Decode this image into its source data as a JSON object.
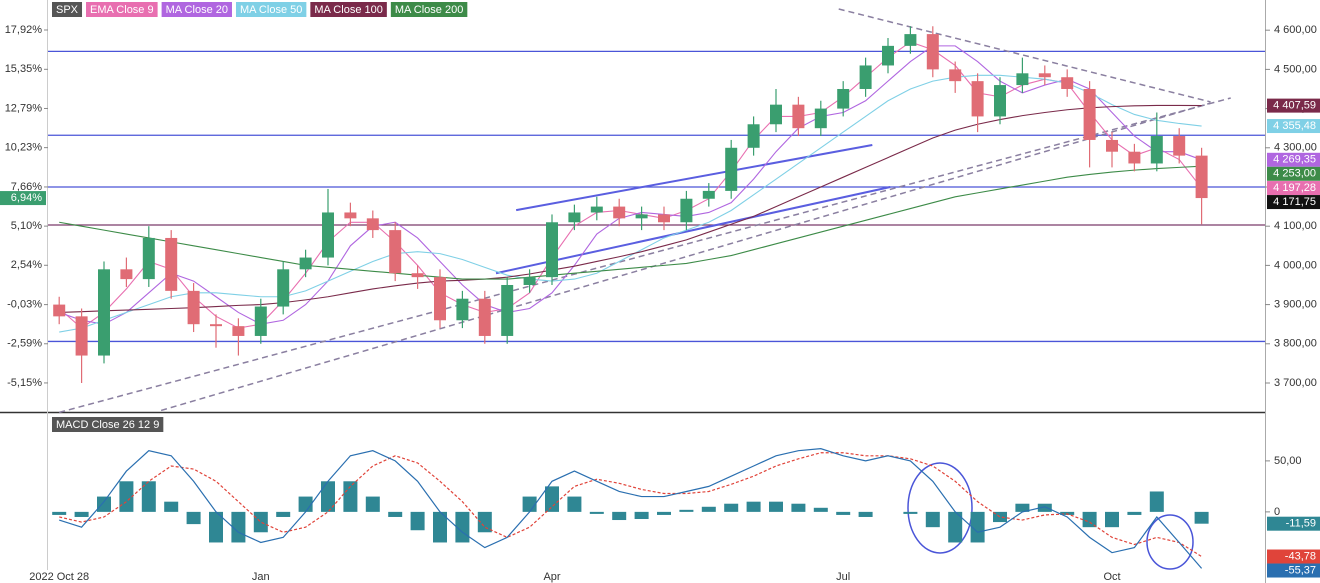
{
  "chart_data": [
    {
      "type": "candlestick",
      "name": "SPX",
      "up_color": "#3a9e6f",
      "down_color": "#e06c75",
      "categories": [
        "2022 Oct 28",
        null,
        null,
        null,
        null,
        null,
        null,
        null,
        null,
        "Jan",
        null,
        null,
        null,
        null,
        null,
        null,
        null,
        null,
        null,
        null,
        null,
        null,
        "Apr",
        null,
        null,
        null,
        null,
        null,
        null,
        null,
        null,
        null,
        null,
        null,
        null,
        "Jul",
        null,
        null,
        null,
        null,
        null,
        null,
        null,
        null,
        null,
        null,
        null,
        "Oct",
        null,
        null,
        null,
        null
      ],
      "open": [
        3900,
        3870,
        3770,
        3990,
        3965,
        4070,
        3935,
        3850,
        3845,
        3820,
        3895,
        3990,
        4020,
        4135,
        4120,
        4090,
        3980,
        3970,
        3860,
        3915,
        3820,
        3950,
        3970,
        4110,
        4135,
        4150,
        4120,
        4130,
        4110,
        4170,
        4190,
        4300,
        4360,
        4410,
        4350,
        4400,
        4450,
        4510,
        4560,
        4590,
        4500,
        4470,
        4380,
        4460,
        4490,
        4480,
        4450,
        4320,
        4290,
        4260,
        4330,
        4280
      ],
      "high": [
        3920,
        3890,
        4010,
        4020,
        4100,
        4090,
        3955,
        3875,
        3865,
        3915,
        4010,
        4040,
        4195,
        4160,
        4140,
        4110,
        4000,
        3990,
        3935,
        3935,
        3970,
        3990,
        4130,
        4155,
        4175,
        4170,
        4150,
        4150,
        4190,
        4210,
        4320,
        4380,
        4450,
        4430,
        4420,
        4470,
        4530,
        4580,
        4610,
        4610,
        4520,
        4490,
        4480,
        4530,
        4510,
        4500,
        4470,
        4340,
        4310,
        4390,
        4350,
        4300
      ],
      "low": [
        3850,
        3700,
        3750,
        3945,
        3945,
        3915,
        3830,
        3790,
        3770,
        3800,
        3875,
        3970,
        4000,
        4100,
        4070,
        3960,
        3940,
        3840,
        3840,
        3800,
        3800,
        3930,
        3950,
        4090,
        4115,
        4100,
        4090,
        4090,
        4090,
        4150,
        4170,
        4280,
        4340,
        4330,
        4330,
        4380,
        4430,
        4490,
        4540,
        4480,
        4440,
        4340,
        4360,
        4440,
        4460,
        4430,
        4250,
        4250,
        4240,
        4240,
        4260,
        4105
      ],
      "close": [
        3870,
        3770,
        3990,
        3965,
        4070,
        3935,
        3850,
        3845,
        3820,
        3895,
        3990,
        4020,
        4135,
        4120,
        4090,
        3980,
        3970,
        3860,
        3915,
        3820,
        3950,
        3970,
        4110,
        4135,
        4150,
        4120,
        4130,
        4110,
        4170,
        4190,
        4300,
        4360,
        4410,
        4350,
        4400,
        4450,
        4510,
        4560,
        4590,
        4500,
        4470,
        4380,
        4460,
        4490,
        4480,
        4450,
        4320,
        4290,
        4260,
        4330,
        4280,
        4171.75
      ],
      "last_label": "4 171,75",
      "last_percent_label": "6,94%",
      "series": [
        {
          "name": "EMA Close 9",
          "color": "#e86fb0",
          "last_label": "4 197,28",
          "values": [
            3890,
            3840,
            3880,
            3940,
            4010,
            3990,
            3920,
            3870,
            3840,
            3850,
            3910,
            3980,
            4060,
            4110,
            4110,
            4060,
            4000,
            3930,
            3900,
            3880,
            3890,
            3930,
            4020,
            4100,
            4135,
            4140,
            4130,
            4120,
            4140,
            4170,
            4240,
            4320,
            4380,
            4380,
            4390,
            4430,
            4480,
            4530,
            4570,
            4550,
            4510,
            4440,
            4430,
            4460,
            4475,
            4465,
            4390,
            4320,
            4280,
            4300,
            4270,
            4197.28
          ]
        },
        {
          "name": "MA Close 20",
          "color": "#b066e0",
          "last_label": "4 269,35",
          "values": [
            3880,
            3860,
            3850,
            3880,
            3930,
            3980,
            3960,
            3920,
            3880,
            3850,
            3860,
            3900,
            3960,
            4050,
            4100,
            4110,
            4070,
            4010,
            3950,
            3900,
            3880,
            3890,
            3930,
            4000,
            4080,
            4120,
            4135,
            4130,
            4125,
            4135,
            4160,
            4220,
            4290,
            4350,
            4380,
            4390,
            4420,
            4470,
            4520,
            4560,
            4560,
            4520,
            4470,
            4440,
            4460,
            4475,
            4450,
            4390,
            4330,
            4290,
            4290,
            4269.35
          ]
        },
        {
          "name": "MA Close 50",
          "color": "#7fd0e6",
          "last_label": "4 355,48",
          "values": [
            3830,
            3840,
            3860,
            3880,
            3900,
            3920,
            3930,
            3930,
            3925,
            3920,
            3920,
            3935,
            3960,
            3985,
            4010,
            4030,
            4035,
            4030,
            4015,
            3995,
            3975,
            3965,
            3960,
            3965,
            3980,
            4010,
            4040,
            4070,
            4090,
            4110,
            4140,
            4180,
            4220,
            4260,
            4300,
            4340,
            4380,
            4420,
            4450,
            4470,
            4480,
            4485,
            4485,
            4480,
            4475,
            4465,
            4440,
            4410,
            4385,
            4370,
            4362,
            4355.48
          ]
        },
        {
          "name": "MA Close 100",
          "color": "#7a2a4a",
          "last_label": "4 407,59",
          "values": [
            3880,
            3882,
            3884,
            3886,
            3888,
            3890,
            3892,
            3895,
            3898,
            3900,
            3905,
            3912,
            3920,
            3930,
            3940,
            3948,
            3955,
            3960,
            3962,
            3965,
            3970,
            3978,
            3988,
            3998,
            4010,
            4022,
            4035,
            4050,
            4065,
            4085,
            4105,
            4125,
            4150,
            4175,
            4200,
            4225,
            4250,
            4275,
            4300,
            4325,
            4345,
            4360,
            4372,
            4382,
            4390,
            4397,
            4402,
            4405,
            4407,
            4408,
            4408,
            4407.59
          ]
        },
        {
          "name": "MA Close 200",
          "color": "#3d8b48",
          "last_label": "4 253,00",
          "values": [
            4110,
            4100,
            4090,
            4080,
            4070,
            4060,
            4050,
            4040,
            4030,
            4020,
            4010,
            4000,
            3995,
            3990,
            3985,
            3980,
            3975,
            3970,
            3965,
            3965,
            3965,
            3970,
            3975,
            3980,
            3985,
            3990,
            3995,
            4000,
            4005,
            4015,
            4025,
            4040,
            4055,
            4070,
            4085,
            4100,
            4115,
            4130,
            4145,
            4160,
            4175,
            4185,
            4195,
            4205,
            4215,
            4225,
            4232,
            4238,
            4243,
            4247,
            4250,
            4253
          ]
        }
      ],
      "ylim": [
        3626,
        4677
      ],
      "yticks": [
        {
          "value": 3700,
          "label": "3 700,00"
        },
        {
          "value": 3800,
          "label": "3 800,00"
        },
        {
          "value": 3900,
          "label": "3 900,00"
        },
        {
          "value": 4000,
          "label": "4 000,00"
        },
        {
          "value": 4100,
          "label": "4 100,00"
        },
        {
          "value": 4200,
          "label": "4 200,00"
        },
        {
          "value": 4300,
          "label": "4 300,00"
        },
        {
          "value": 4400,
          "label": "4 400,00"
        },
        {
          "value": 4500,
          "label": "4 500,00"
        },
        {
          "value": 4600,
          "label": "4 600,00"
        }
      ],
      "y2lim": [
        -7.05,
        19.88
      ],
      "y2ticks": [
        {
          "value": -5.15,
          "label": "-5,15%"
        },
        {
          "value": -2.59,
          "label": "-2,59%"
        },
        {
          "value": -0.03,
          "label": "-0,03%"
        },
        {
          "value": 2.54,
          "label": "2,54%"
        },
        {
          "value": 5.1,
          "label": "5,10%"
        },
        {
          "value": 7.66,
          "label": "7,66%"
        },
        {
          "value": 10.23,
          "label": "10,23%"
        },
        {
          "value": 12.79,
          "label": "12,79%"
        },
        {
          "value": 15.35,
          "label": "15,35%"
        },
        {
          "value": 17.92,
          "label": "17,92%"
        }
      ],
      "hlines": [
        {
          "value": 4546,
          "color": "#4a55d8"
        },
        {
          "value": 4332,
          "color": "#4a55d8"
        },
        {
          "value": 4200,
          "color": "#4a55d8"
        },
        {
          "value": 4103,
          "color": "#7a3a6a"
        },
        {
          "value": 3806,
          "color": "#4a55d8"
        }
      ],
      "trendlines": [
        {
          "x1": 34.8,
          "y1": 4654,
          "x2": 51.4,
          "y2": 4417,
          "color": "#8a7fa0",
          "dashed": true
        },
        {
          "x1": 0,
          "y1": 3625,
          "x2": 52.3,
          "y2": 4427,
          "color": "#8a7fa0",
          "dashed": true
        },
        {
          "x1": 4.55,
          "y1": 3630,
          "x2": 51.4,
          "y2": 4414,
          "color": "#8a7fa0",
          "dashed": true
        },
        {
          "x1": 20.4,
          "y1": 4141,
          "x2": 36.3,
          "y2": 4307,
          "color": "#5a5ee0",
          "dashed": false
        },
        {
          "x1": 19.5,
          "y1": 3980,
          "x2": 37.1,
          "y2": 4200,
          "color": "#5a5ee0",
          "dashed": false
        }
      ]
    },
    {
      "type": "macd",
      "title": "MACD Close 26 12 9",
      "ylim": [
        -57,
        95
      ],
      "yticks": [
        {
          "value": 50,
          "label": "50,00"
        },
        0
      ],
      "macd": {
        "color": "#2a6fb0",
        "last_label": "-55,37",
        "values": [
          -8,
          -15,
          10,
          40,
          60,
          55,
          30,
          0,
          -20,
          -30,
          -25,
          0,
          30,
          55,
          60,
          50,
          30,
          0,
          -20,
          -35,
          -25,
          0,
          30,
          40,
          30,
          20,
          15,
          15,
          20,
          25,
          35,
          45,
          55,
          60,
          62,
          55,
          50,
          55,
          50,
          30,
          0,
          -20,
          -15,
          0,
          5,
          -5,
          -25,
          -40,
          -35,
          -5,
          -30,
          -55.37
        ]
      },
      "signal": {
        "color": "#e0443a",
        "last_label": "-43,78",
        "values": [
          -5,
          -10,
          -5,
          10,
          30,
          45,
          42,
          30,
          10,
          -10,
          -20,
          -15,
          0,
          25,
          45,
          55,
          48,
          30,
          10,
          -15,
          -25,
          -15,
          5,
          25,
          32,
          28,
          22,
          18,
          18,
          20,
          27,
          35,
          45,
          52,
          58,
          58,
          55,
          55,
          52,
          45,
          30,
          10,
          -5,
          -8,
          -3,
          -2,
          -10,
          -25,
          -32,
          -25,
          -30,
          -43.78
        ]
      },
      "histogram": {
        "color": "#2f8794",
        "last_label": "-11,59",
        "values": [
          -3,
          -5,
          15,
          30,
          30,
          10,
          -12,
          -30,
          -30,
          -20,
          -5,
          15,
          30,
          30,
          15,
          -5,
          -18,
          -30,
          -30,
          -20,
          0,
          15,
          25,
          15,
          -2,
          -8,
          -7,
          -3,
          2,
          5,
          8,
          10,
          10,
          8,
          4,
          -3,
          -5,
          0,
          -2,
          -15,
          -30,
          -30,
          -10,
          8,
          8,
          -3,
          -15,
          -15,
          -3,
          20,
          0,
          -11.59
        ]
      }
    }
  ]
}
